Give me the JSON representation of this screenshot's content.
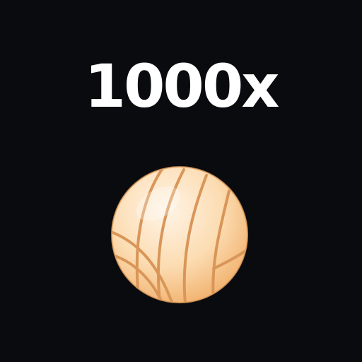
{
  "prize": {
    "multiplier_text": "1000x"
  },
  "ball": {
    "icon": "volleyball-icon",
    "colors": {
      "light": "#fff1de",
      "mid": "#fbd9ac",
      "dark": "#f1b26e",
      "seam": "#dc9a5c"
    }
  }
}
